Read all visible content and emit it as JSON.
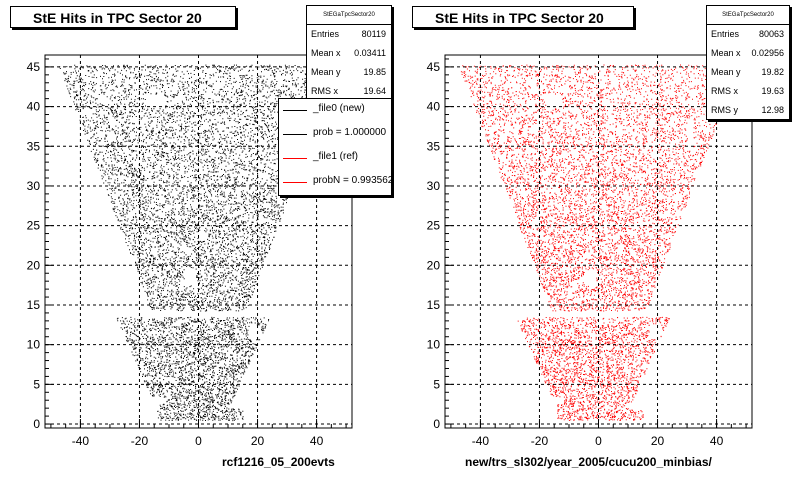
{
  "pads": [
    {
      "title": "StE Hits in TPC Sector 20",
      "xlabel": "rcf1216_05_200evts",
      "stats": {
        "name": "StEGaTpcSector20",
        "rows": [
          {
            "key": "Entries",
            "value": "80119"
          },
          {
            "key": "Mean x",
            "value": "0.03411"
          },
          {
            "key": "Mean y",
            "value": "19.85"
          },
          {
            "key": "RMS x",
            "value": "19.64"
          }
        ]
      },
      "legend": [
        {
          "label": "_file0 (new)",
          "color": "#000000"
        },
        {
          "label": "prob = 1.000000",
          "color": "#000000"
        },
        {
          "label": "_file1 (ref)",
          "color": "#ff0000"
        },
        {
          "label": "probN = 0.993562",
          "color": "#ff0000"
        }
      ]
    },
    {
      "title": "StE Hits in TPC Sector 20",
      "xlabel": "new/trs_sl302/year_2005/cucu200_minbias/",
      "stats": {
        "name": "StEGaTpcSector20",
        "rows": [
          {
            "key": "Entries",
            "value": "80063"
          },
          {
            "key": "Mean x",
            "value": "0.02956"
          },
          {
            "key": "Mean y",
            "value": "19.82"
          },
          {
            "key": "RMS x",
            "value": "19.63"
          },
          {
            "key": "RMS y",
            "value": "12.98"
          }
        ]
      }
    }
  ],
  "chart_data": [
    {
      "type": "scatter",
      "title": "StE Hits in TPC Sector 20",
      "xlabel": "rcf1216_05_200evts",
      "ylabel": "",
      "xlim": [
        -52,
        52
      ],
      "ylim": [
        -0.5,
        46.5
      ],
      "xticks": [
        -40,
        -20,
        0,
        20,
        40
      ],
      "yticks": [
        0,
        5,
        10,
        15,
        20,
        25,
        30,
        35,
        40,
        45
      ],
      "grid": true,
      "marker_color": "#000000",
      "entries": 80119,
      "mean_x": 0.03411,
      "mean_y": 19.85,
      "rms_x": 19.64,
      "legend_position": "top-right",
      "series": [
        {
          "name": "_file0 (new)",
          "color": "#000000"
        },
        {
          "name": "_file1 (ref)",
          "color": "#ff0000"
        }
      ]
    },
    {
      "type": "scatter",
      "title": "StE Hits in TPC Sector 20",
      "xlabel": "new/trs_sl302/year_2005/cucu200_minbias/",
      "ylabel": "",
      "xlim": [
        -52,
        52
      ],
      "ylim": [
        -0.5,
        46.5
      ],
      "xticks": [
        -40,
        -20,
        0,
        20,
        40
      ],
      "yticks": [
        0,
        5,
        10,
        15,
        20,
        25,
        30,
        35,
        40,
        45
      ],
      "grid": true,
      "marker_color": "#ff0000",
      "entries": 80063,
      "mean_x": 0.02956,
      "mean_y": 19.82,
      "rms_x": 19.63,
      "rms_y": 12.98
    }
  ]
}
